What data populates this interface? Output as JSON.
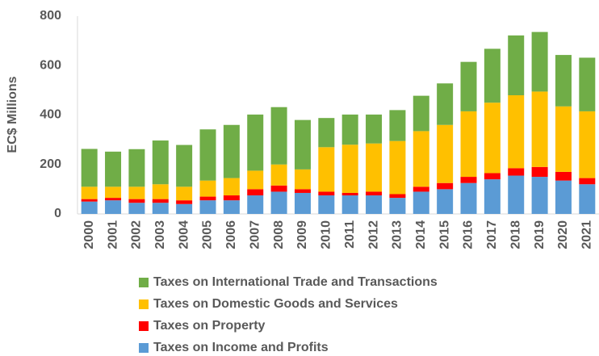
{
  "chart_data": {
    "type": "stacked-bar",
    "y_label": "EC$ Millions",
    "categories": [
      "2000",
      "2001",
      "2002",
      "2003",
      "2004",
      "2005",
      "2006",
      "2007",
      "2008",
      "2009",
      "2010",
      "2011",
      "2012",
      "2013",
      "2014",
      "2015",
      "2016",
      "2017",
      "2018",
      "2019",
      "2020",
      "2021"
    ],
    "series": [
      {
        "name": "Taxes on Income and Profits",
        "color": "#5b9bd5",
        "values": [
          50,
          55,
          45,
          45,
          40,
          55,
          55,
          75,
          90,
          85,
          75,
          75,
          75,
          65,
          90,
          100,
          125,
          140,
          155,
          150,
          135,
          120
        ]
      },
      {
        "name": "Taxes on Property",
        "color": "#ff0000",
        "values": [
          10,
          10,
          15,
          15,
          15,
          15,
          20,
          25,
          25,
          15,
          15,
          10,
          15,
          15,
          20,
          25,
          25,
          25,
          30,
          40,
          35,
          25
        ]
      },
      {
        "name": "Taxes on Domestic Goods and Services",
        "color": "#ffc000",
        "values": [
          50,
          45,
          50,
          60,
          55,
          65,
          70,
          75,
          85,
          80,
          180,
          195,
          195,
          215,
          225,
          235,
          265,
          285,
          295,
          305,
          265,
          270
        ]
      },
      {
        "name": "Taxes on International Trade and Transactions",
        "color": "#70ad47",
        "values": [
          153,
          142,
          152,
          177,
          169,
          207,
          215,
          227,
          232,
          200,
          118,
          122,
          117,
          125,
          143,
          168,
          200,
          218,
          242,
          241,
          208,
          217
        ]
      }
    ],
    "ylim": [
      0,
      800
    ],
    "yticks": [
      0,
      200,
      400,
      600,
      800
    ],
    "grid": false
  }
}
